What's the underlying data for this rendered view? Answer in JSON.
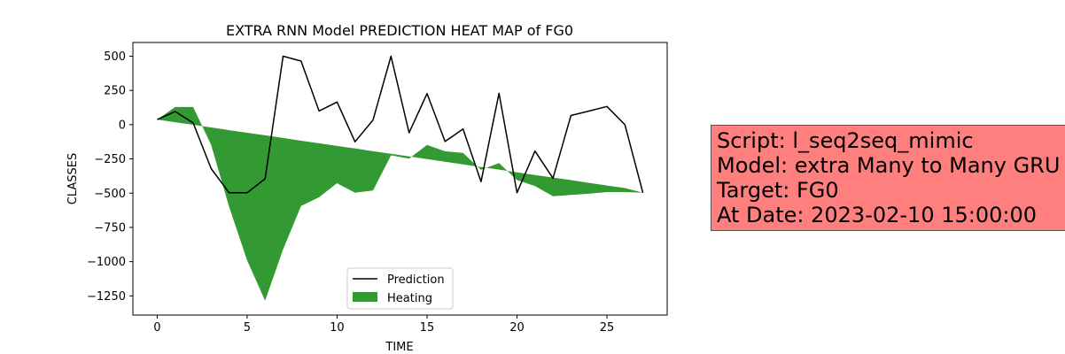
{
  "chart_data": {
    "type": "line",
    "title": "EXTRA RNN Model PREDICTION HEAT MAP of FG0",
    "xlabel": "TIME",
    "ylabel": "CLASSES",
    "xlim": [
      -1.35,
      28.35
    ],
    "ylim": [
      -1390,
      600
    ],
    "xticks": [
      0,
      5,
      10,
      15,
      20,
      25
    ],
    "yticks": [
      500,
      250,
      0,
      -250,
      -500,
      -750,
      -1000,
      -1250
    ],
    "ytick_labels": [
      "500",
      "250",
      "0",
      "−250",
      "−500",
      "−750",
      "−1000",
      "−1250"
    ],
    "grid": false,
    "legend_position": "lower-center",
    "x": [
      0,
      1,
      2,
      3,
      4,
      5,
      6,
      7,
      8,
      9,
      10,
      11,
      12,
      13,
      14,
      15,
      16,
      17,
      18,
      19,
      20,
      21,
      22,
      23,
      24,
      25,
      26,
      27
    ],
    "series": [
      {
        "name": "Prediction",
        "kind": "line",
        "color": "#000000",
        "values": [
          37,
          96,
          13,
          -321,
          -497,
          -497,
          -395,
          500,
          464,
          100,
          165,
          -125,
          34,
          500,
          -59,
          227,
          -123,
          -31,
          -416,
          229,
          -497,
          -193,
          -391,
          67,
          99,
          133,
          0,
          -497
        ]
      },
      {
        "name": "Heating",
        "kind": "fill_between",
        "color": "#008000",
        "opacity": 0.8,
        "baseline": [
          37,
          18,
          -1,
          -20,
          -40,
          -59,
          -78,
          -97,
          -117,
          -136,
          -155,
          -174,
          -194,
          -213,
          -232,
          -251,
          -271,
          -290,
          -309,
          -328,
          -348,
          -367,
          -386,
          -405,
          -425,
          -444,
          -463,
          -497
        ],
        "values": [
          37,
          129,
          129,
          -148,
          -600,
          -990,
          -1285,
          -910,
          -594,
          -530,
          -427,
          -497,
          -480,
          -224,
          -248,
          -148,
          -195,
          -206,
          -330,
          -280,
          -404,
          -448,
          -523,
          -513,
          -504,
          -492,
          -492,
          -497
        ]
      }
    ]
  },
  "info_box": {
    "lines": [
      "Script: l_seq2seq_mimic",
      "Model: extra Many to Many GRU",
      "Target: FG0",
      "At Date: 2023-02-10 15:00:00"
    ],
    "background": "#ff7f7f"
  }
}
